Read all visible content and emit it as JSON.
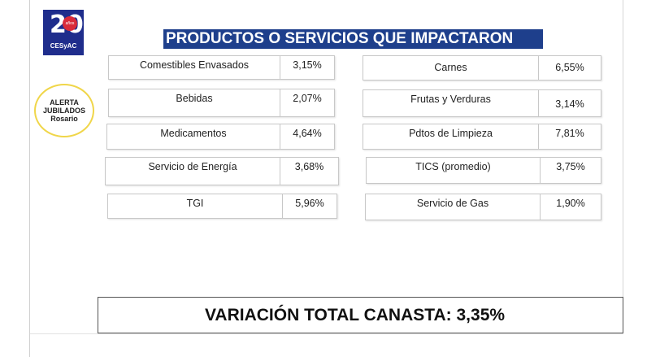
{
  "title": "PRODUCTOS O SERVICIOS QUE IMPACTARON",
  "logos": {
    "cesyac_number": "20",
    "cesyac_circle": "años",
    "cesyac_name": "CESyAC",
    "alerta_line1": "ALERTA",
    "alerta_line2": "JUBILADOS",
    "alerta_line3": "Rosario"
  },
  "left_items": [
    {
      "label": "Comestibles Envasados",
      "value": "3,15%"
    },
    {
      "label": "Bebidas",
      "value": "2,07%"
    },
    {
      "label": "Medicamentos",
      "value": "4,64%"
    },
    {
      "label": "Servicio de Energía",
      "value": "3,68%"
    },
    {
      "label": "TGI",
      "value": "5,96%"
    }
  ],
  "right_items": [
    {
      "label": "Carnes",
      "value": "6,55%"
    },
    {
      "label": "Frutas y Verduras",
      "value": "3,14%"
    },
    {
      "label": "Pdtos de Limpieza",
      "value": "7,81%"
    },
    {
      "label": "TICS (promedio)",
      "value": "3,75%"
    },
    {
      "label": "Servicio de Gas",
      "value": "1,90%"
    }
  ],
  "total": "VARIACIÓN TOTAL CANASTA: 3,35%"
}
